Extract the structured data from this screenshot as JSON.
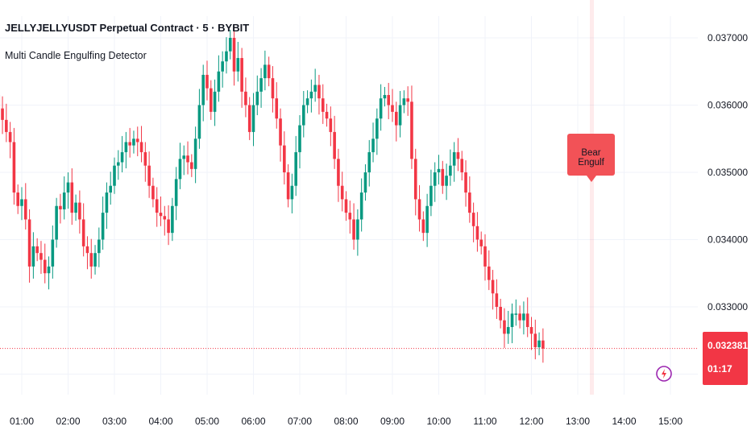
{
  "header": {
    "title": "JELLYJELLYUSDT Perpetual Contract · 5 · BYBIT",
    "indicator": "Multi Candle Engulfing Detector"
  },
  "price_label": {
    "value": "0.032381",
    "countdown": "01:17"
  },
  "signal_label": {
    "text": "Bear Engulf"
  },
  "colors": {
    "up": "#089981",
    "down": "#f23645",
    "grid": "#f0f3fa",
    "signal": "#f25257"
  },
  "icons": {
    "alert": "lightning-alert-icon"
  },
  "chart_data": {
    "type": "candlestick",
    "title": "JELLYJELLYUSDT Perpetual Contract · 5 · BYBIT",
    "xlabel": "",
    "ylabel": "",
    "y_ticks": [
      "0.037000",
      "0.036000",
      "0.035000",
      "0.034000",
      "0.033000"
    ],
    "y_tick_values": [
      0.037,
      0.036,
      0.035,
      0.034,
      0.033
    ],
    "ylim": [
      0.032,
      0.0375
    ],
    "x_ticks": [
      "01:00",
      "02:00",
      "03:00",
      "04:00",
      "05:00",
      "06:00",
      "07:00",
      "08:00",
      "09:00",
      "10:00",
      "11:00",
      "12:00",
      "13:00",
      "14:00",
      "15:00"
    ],
    "candle_interval_minutes": 5,
    "first_candle_time": "00:30",
    "grid": true,
    "last_price": 0.032381,
    "close": [
      0.03595,
      0.03578,
      0.0356,
      0.03545,
      0.0347,
      0.0345,
      0.0346,
      0.0343,
      0.0336,
      0.0339,
      0.0338,
      0.0337,
      0.0335,
      0.0336,
      0.034,
      0.0345,
      0.03445,
      0.0347,
      0.03485,
      0.0344,
      0.03455,
      0.0343,
      0.0339,
      0.0338,
      0.0336,
      0.0338,
      0.034,
      0.0344,
      0.0347,
      0.0348,
      0.0351,
      0.03515,
      0.0353,
      0.03545,
      0.0354,
      0.0355,
      0.03545,
      0.0353,
      0.0351,
      0.0348,
      0.0346,
      0.0344,
      0.03435,
      0.0343,
      0.0341,
      0.0345,
      0.0349,
      0.0352,
      0.03525,
      0.03515,
      0.03505,
      0.0355,
      0.036,
      0.03645,
      0.03625,
      0.0359,
      0.0362,
      0.0365,
      0.03665,
      0.0368,
      0.037,
      0.0365,
      0.0367,
      0.0362,
      0.036,
      0.0356,
      0.036,
      0.0362,
      0.0364,
      0.0366,
      0.0364,
      0.0361,
      0.0358,
      0.0354,
      0.035,
      0.0346,
      0.0348,
      0.0353,
      0.0357,
      0.036,
      0.0361,
      0.0362,
      0.0363,
      0.0361,
      0.0359,
      0.0358,
      0.0356,
      0.0352,
      0.0348,
      0.0346,
      0.0344,
      0.0343,
      0.034,
      0.0343,
      0.0347,
      0.035,
      0.0353,
      0.0355,
      0.0358,
      0.0361,
      0.03615,
      0.036,
      0.0359,
      0.0357,
      0.036,
      0.0361,
      0.03605,
      0.0352,
      0.0346,
      0.0343,
      0.0341,
      0.0345,
      0.0348,
      0.035,
      0.03505,
      0.0348,
      0.03495,
      0.0351,
      0.0353,
      0.0352,
      0.035,
      0.0347,
      0.0344,
      0.0342,
      0.034,
      0.0339,
      0.0336,
      0.0334,
      0.0332,
      0.033,
      0.0328,
      0.0326,
      0.0327,
      0.0329,
      0.0329,
      0.0328,
      0.0329,
      0.0327,
      0.0326,
      0.0324,
      0.0325,
      0.03238
    ],
    "series_note": "close prices read off the y axis (approximate)"
  }
}
